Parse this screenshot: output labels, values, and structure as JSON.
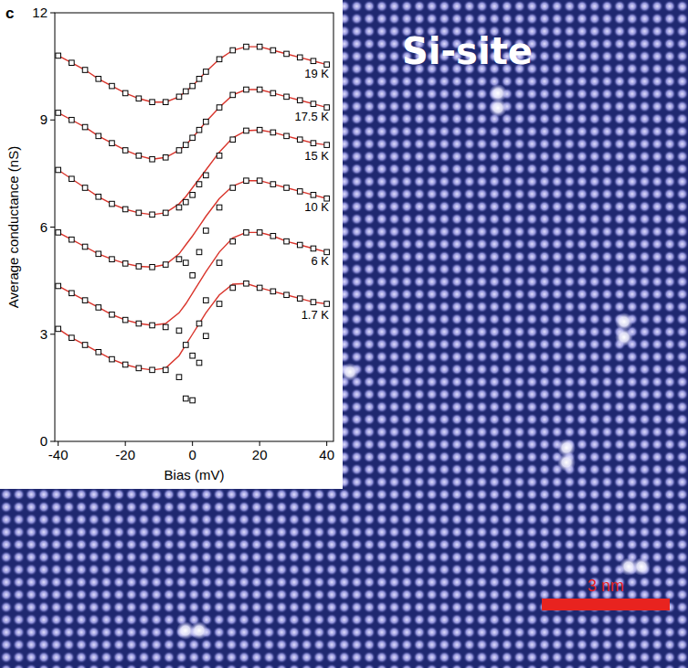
{
  "image_labels": {
    "site": "Si-site",
    "scale_bar": "3 nm"
  },
  "chart_data": {
    "type": "scatter",
    "panel_label": "c",
    "x_label": "Bias (mV)",
    "y_label": "Average conductance (nS)",
    "xlim": [
      -41,
      42
    ],
    "ylim": [
      0,
      12
    ],
    "xticks": [
      -40,
      -20,
      0,
      20,
      40
    ],
    "yticks": [
      0,
      3,
      6,
      9,
      12
    ],
    "grid": false,
    "x": [
      -40,
      -36,
      -32,
      -28,
      -24,
      -20,
      -16,
      -12,
      -8,
      -4,
      -2,
      0,
      2,
      4,
      8,
      12,
      16,
      20,
      24,
      28,
      32,
      36,
      40
    ],
    "series": [
      {
        "name": "19 K",
        "type": "scatter",
        "marker": "square",
        "color": "#000000",
        "values": [
          10.8,
          10.6,
          10.4,
          10.15,
          9.95,
          9.75,
          9.6,
          9.5,
          9.5,
          9.65,
          9.8,
          9.95,
          10.15,
          10.35,
          10.7,
          10.95,
          11.05,
          11.05,
          10.95,
          10.85,
          10.75,
          10.65,
          10.55
        ]
      },
      {
        "name": "17.5 K",
        "type": "scatter",
        "marker": "square",
        "color": "#000000",
        "values": [
          9.2,
          9.0,
          8.8,
          8.55,
          8.35,
          8.15,
          8.0,
          7.9,
          7.95,
          8.15,
          8.3,
          8.5,
          8.72,
          8.95,
          9.35,
          9.7,
          9.85,
          9.85,
          9.75,
          9.65,
          9.55,
          9.45,
          9.35
        ]
      },
      {
        "name": "15 K",
        "type": "scatter",
        "marker": "square",
        "color": "#000000",
        "values": [
          7.6,
          7.35,
          7.1,
          6.85,
          6.65,
          6.5,
          6.4,
          6.35,
          6.4,
          6.55,
          6.7,
          6.9,
          7.2,
          7.45,
          8.0,
          8.45,
          8.7,
          8.72,
          8.65,
          8.55,
          8.45,
          8.35,
          8.3
        ]
      },
      {
        "name": "10 K",
        "type": "scatter",
        "marker": "square",
        "color": "#000000",
        "values": [
          5.85,
          5.65,
          5.45,
          5.25,
          5.1,
          4.98,
          4.9,
          4.88,
          4.95,
          5.1,
          5.0,
          4.65,
          5.3,
          5.9,
          6.55,
          7.1,
          7.3,
          7.3,
          7.2,
          7.1,
          7.0,
          6.9,
          6.8
        ]
      },
      {
        "name": "6 K",
        "type": "scatter",
        "marker": "square",
        "color": "#000000",
        "values": [
          4.35,
          4.15,
          3.95,
          3.75,
          3.55,
          3.4,
          3.3,
          3.25,
          3.2,
          3.1,
          2.7,
          2.4,
          3.3,
          3.95,
          5.0,
          5.6,
          5.85,
          5.85,
          5.75,
          5.6,
          5.5,
          5.4,
          5.3
        ]
      },
      {
        "name": "1.7 K",
        "type": "scatter",
        "marker": "square",
        "color": "#000000",
        "values": [
          3.15,
          2.9,
          2.7,
          2.5,
          2.3,
          2.15,
          2.05,
          2.0,
          2.0,
          1.8,
          1.2,
          1.15,
          2.2,
          2.95,
          3.85,
          4.3,
          4.42,
          4.3,
          4.2,
          4.1,
          4.0,
          3.9,
          3.85
        ]
      },
      {
        "type": "line",
        "line_style": "solid",
        "color": "#d9342b",
        "values": [
          10.8,
          10.6,
          10.4,
          10.15,
          9.95,
          9.75,
          9.6,
          9.5,
          9.5,
          9.65,
          9.8,
          9.95,
          10.15,
          10.35,
          10.7,
          10.95,
          11.05,
          11.05,
          10.95,
          10.85,
          10.75,
          10.65,
          10.55
        ]
      },
      {
        "type": "line",
        "line_style": "solid",
        "color": "#d9342b",
        "values": [
          9.2,
          9.0,
          8.8,
          8.55,
          8.35,
          8.15,
          8.0,
          7.9,
          7.95,
          8.15,
          8.3,
          8.5,
          8.72,
          8.95,
          9.35,
          9.7,
          9.85,
          9.85,
          9.75,
          9.65,
          9.55,
          9.45,
          9.35
        ]
      },
      {
        "type": "line",
        "line_style": "solid",
        "color": "#d9342b",
        "values": [
          7.6,
          7.35,
          7.1,
          6.85,
          6.65,
          6.5,
          6.4,
          6.35,
          6.4,
          6.65,
          6.85,
          7.1,
          7.35,
          7.6,
          8.1,
          8.5,
          8.7,
          8.72,
          8.65,
          8.55,
          8.45,
          8.35,
          8.3
        ]
      },
      {
        "type": "line",
        "line_style": "solid",
        "color": "#d9342b",
        "values": [
          5.85,
          5.65,
          5.45,
          5.25,
          5.1,
          4.98,
          4.9,
          4.88,
          4.95,
          5.25,
          5.5,
          5.75,
          6.02,
          6.3,
          6.8,
          7.15,
          7.3,
          7.3,
          7.2,
          7.1,
          7.0,
          6.9,
          6.8
        ]
      },
      {
        "type": "line",
        "line_style": "solid",
        "color": "#d9342b",
        "values": [
          4.35,
          4.15,
          3.95,
          3.75,
          3.55,
          3.4,
          3.3,
          3.25,
          3.3,
          3.6,
          3.85,
          4.15,
          4.45,
          4.75,
          5.3,
          5.7,
          5.85,
          5.85,
          5.75,
          5.6,
          5.5,
          5.4,
          5.3
        ]
      },
      {
        "type": "line",
        "line_style": "solid",
        "color": "#d9342b",
        "values": [
          3.15,
          2.9,
          2.7,
          2.5,
          2.3,
          2.15,
          2.05,
          2.0,
          2.05,
          2.4,
          2.7,
          3.0,
          3.3,
          3.6,
          4.1,
          4.4,
          4.42,
          4.3,
          4.2,
          4.1,
          4.0,
          3.9,
          3.85
        ]
      }
    ]
  }
}
